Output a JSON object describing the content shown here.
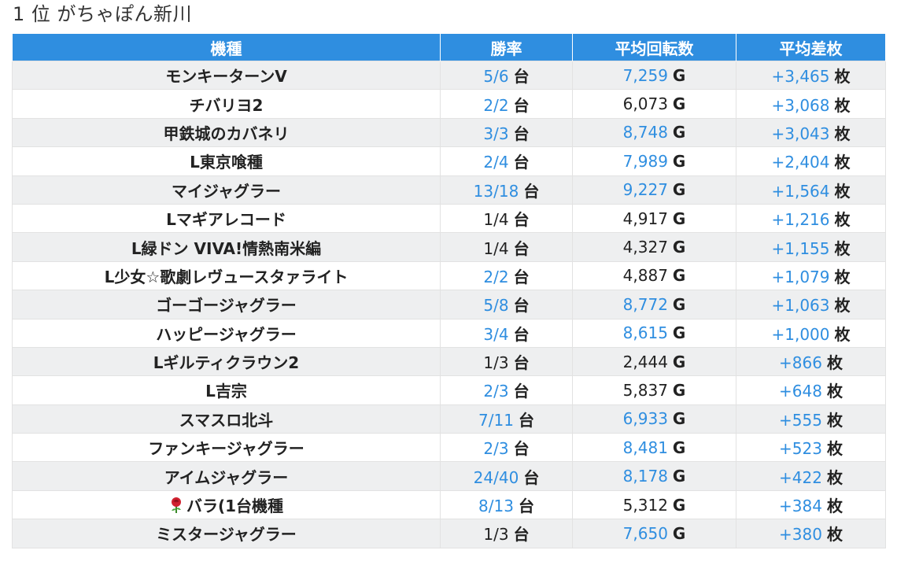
{
  "page": {
    "title": "1 位 がちゃぽん新川"
  },
  "table": {
    "headers": [
      "機種",
      "勝率",
      "平均回転数",
      "平均差枚"
    ],
    "units": {
      "win": "台",
      "spins": "G",
      "diff": "枚"
    },
    "rows": [
      {
        "machine": "モンキーターンV",
        "win": "5/6",
        "win_link": true,
        "spins": "7,259",
        "spins_link": true,
        "diff": "+3,465"
      },
      {
        "machine": "チバリヨ2",
        "win": "2/2",
        "win_link": true,
        "spins": "6,073",
        "spins_link": false,
        "diff": "+3,068"
      },
      {
        "machine": "甲鉄城のカバネリ",
        "win": "3/3",
        "win_link": true,
        "spins": "8,748",
        "spins_link": true,
        "diff": "+3,043"
      },
      {
        "machine": "L東京喰種",
        "win": "2/4",
        "win_link": true,
        "spins": "7,989",
        "spins_link": true,
        "diff": "+2,404"
      },
      {
        "machine": "マイジャグラー",
        "win": "13/18",
        "win_link": true,
        "spins": "9,227",
        "spins_link": true,
        "diff": "+1,564"
      },
      {
        "machine": "Lマギアレコード",
        "win": "1/4",
        "win_link": false,
        "spins": "4,917",
        "spins_link": false,
        "diff": "+1,216"
      },
      {
        "machine": "L緑ドン VIVA!情熱南米編",
        "win": "1/4",
        "win_link": false,
        "spins": "4,327",
        "spins_link": false,
        "diff": "+1,155"
      },
      {
        "machine": "L少女☆歌劇レヴュースタァライト",
        "win": "2/2",
        "win_link": true,
        "spins": "4,887",
        "spins_link": false,
        "diff": "+1,079"
      },
      {
        "machine": "ゴーゴージャグラー",
        "win": "5/8",
        "win_link": true,
        "spins": "8,772",
        "spins_link": true,
        "diff": "+1,063"
      },
      {
        "machine": "ハッピージャグラー",
        "win": "3/4",
        "win_link": true,
        "spins": "8,615",
        "spins_link": true,
        "diff": "+1,000"
      },
      {
        "machine": "Lギルティクラウン2",
        "win": "1/3",
        "win_link": false,
        "spins": "2,444",
        "spins_link": false,
        "diff": "+866"
      },
      {
        "machine": "L吉宗",
        "win": "2/3",
        "win_link": true,
        "spins": "5,837",
        "spins_link": false,
        "diff": "+648"
      },
      {
        "machine": "スマスロ北斗",
        "win": "7/11",
        "win_link": true,
        "spins": "6,933",
        "spins_link": true,
        "diff": "+555"
      },
      {
        "machine": "ファンキージャグラー",
        "win": "2/3",
        "win_link": true,
        "spins": "8,481",
        "spins_link": true,
        "diff": "+523"
      },
      {
        "machine": "アイムジャグラー",
        "win": "24/40",
        "win_link": true,
        "spins": "8,178",
        "spins_link": true,
        "diff": "+422"
      },
      {
        "machine": "バラ(1台機種",
        "icon": "rose-icon",
        "win": "8/13",
        "win_link": true,
        "spins": "5,312",
        "spins_link": false,
        "diff": "+384"
      },
      {
        "machine": "ミスタージャグラー",
        "win": "1/3",
        "win_link": false,
        "spins": "7,650",
        "spins_link": true,
        "diff": "+380"
      }
    ]
  },
  "colors": {
    "accent": "#2f8ee0",
    "header_text": "#ffffff",
    "row_alt": "#eeeff0",
    "text": "#222222"
  }
}
